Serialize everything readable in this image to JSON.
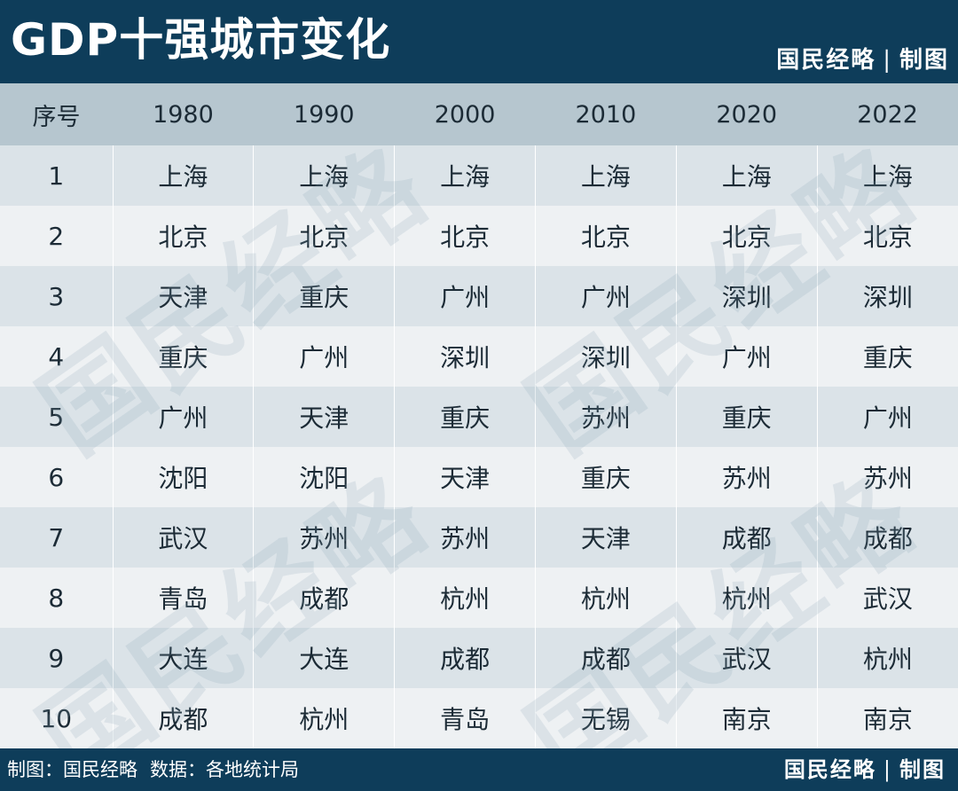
{
  "title": "GDP十强城市变化",
  "brand": {
    "name": "国民经略",
    "separator": "|",
    "tag": "制图"
  },
  "table": {
    "headers": [
      "序号",
      "1980",
      "1990",
      "2000",
      "2010",
      "2020",
      "2022"
    ],
    "rows": [
      [
        "1",
        "上海",
        "上海",
        "上海",
        "上海",
        "上海",
        "上海"
      ],
      [
        "2",
        "北京",
        "北京",
        "北京",
        "北京",
        "北京",
        "北京"
      ],
      [
        "3",
        "天津",
        "重庆",
        "广州",
        "广州",
        "深圳",
        "深圳"
      ],
      [
        "4",
        "重庆",
        "广州",
        "深圳",
        "深圳",
        "广州",
        "重庆"
      ],
      [
        "5",
        "广州",
        "天津",
        "重庆",
        "苏州",
        "重庆",
        "广州"
      ],
      [
        "6",
        "沈阳",
        "沈阳",
        "天津",
        "重庆",
        "苏州",
        "苏州"
      ],
      [
        "7",
        "武汉",
        "苏州",
        "苏州",
        "天津",
        "成都",
        "成都"
      ],
      [
        "8",
        "青岛",
        "成都",
        "杭州",
        "杭州",
        "杭州",
        "武汉"
      ],
      [
        "9",
        "大连",
        "大连",
        "成都",
        "成都",
        "武汉",
        "杭州"
      ],
      [
        "10",
        "成都",
        "杭州",
        "青岛",
        "无锡",
        "南京",
        "南京"
      ]
    ]
  },
  "footer": {
    "credit_label": "制图：",
    "credit_value": "国民经略",
    "source_label": "数据：",
    "source_value": "各地统计局"
  },
  "colors": {
    "header_bg": "#0e3d5a",
    "table_header_bg": "#b6c6cf",
    "row_odd_bg": "#dbe3e8",
    "row_even_bg": "#eef1f3",
    "text": "#1c2b36"
  }
}
